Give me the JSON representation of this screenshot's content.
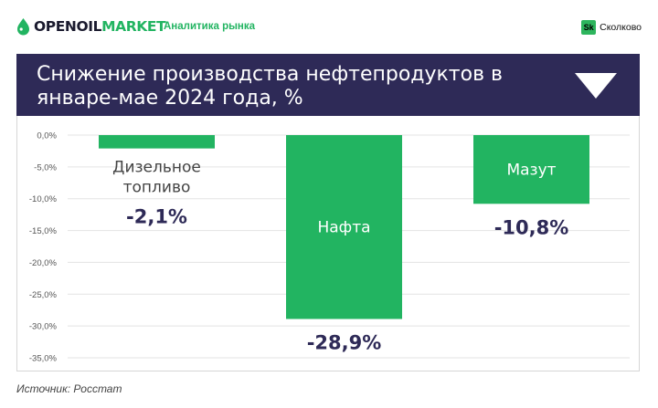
{
  "header": {
    "logo_part1": "OPENOIL",
    "logo_part2": "MARKET",
    "subtitle": "Аналитика рынка",
    "partner_badge": "Sk",
    "partner_name": "Сколково"
  },
  "banner": {
    "title": "Снижение производства нефтепродуктов в январе-мае 2024 года, %",
    "dropdown_icon": "triangle-down-icon"
  },
  "colors": {
    "brand_green": "#22b461",
    "banner_bg": "#2e2a57",
    "bar_green": "#22b461",
    "value_text": "#2e2a57"
  },
  "chart_data": {
    "type": "bar",
    "categories": [
      "Дизельное топливо",
      "Нафта",
      "Мазут"
    ],
    "values": [
      -2.1,
      -28.9,
      -10.8
    ],
    "value_labels": [
      "-2,1%",
      "-28,9%",
      "-10,8%"
    ],
    "ylim": [
      -35,
      0
    ],
    "yticks": [
      0,
      -5,
      -10,
      -15,
      -20,
      -25,
      -30,
      -35
    ],
    "ytick_labels": [
      "0,0%",
      "-5,0%",
      "-10,0%",
      "-15,0%",
      "-20,0%",
      "-25,0%",
      "-30,0%",
      "-35,0%"
    ],
    "grid": true,
    "title": "Снижение производства нефтепродуктов в январе-мае 2024 года, %",
    "xlabel": "",
    "ylabel": ""
  },
  "footer": {
    "source": "Источник: Росстат"
  }
}
